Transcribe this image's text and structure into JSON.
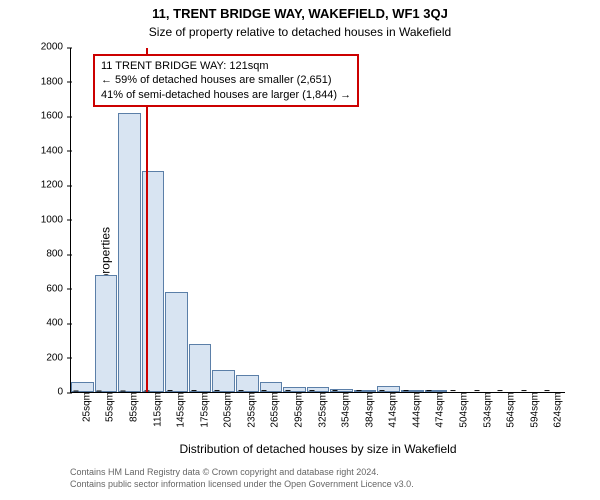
{
  "title": "11, TRENT BRIDGE WAY, WAKEFIELD, WF1 3QJ",
  "subtitle": "Size of property relative to detached houses in Wakefield",
  "ylabel": "Number of detached properties",
  "xlabel": "Distribution of detached houses by size in Wakefield",
  "footer1": "Contains HM Land Registry data © Crown copyright and database right 2024.",
  "footer2": "Contains public sector information licensed under the Open Government Licence v3.0.",
  "chart": {
    "type": "histogram",
    "ylim": [
      0,
      2000
    ],
    "ytick_step": 200,
    "x_categories": [
      "25sqm",
      "55sqm",
      "85sqm",
      "115sqm",
      "145sqm",
      "175sqm",
      "205sqm",
      "235sqm",
      "265sqm",
      "295sqm",
      "325sqm",
      "354sqm",
      "384sqm",
      "414sqm",
      "444sqm",
      "474sqm",
      "504sqm",
      "534sqm",
      "564sqm",
      "594sqm",
      "624sqm"
    ],
    "values": [
      60,
      680,
      1620,
      1280,
      580,
      280,
      130,
      100,
      60,
      30,
      30,
      15,
      10,
      35,
      5,
      5,
      0,
      0,
      0,
      0,
      0
    ],
    "bar_fill": "#d8e4f2",
    "bar_stroke": "#5b7fa8",
    "background": "#ffffff",
    "ref_line": {
      "x_index": 3.2,
      "color": "#cc0000",
      "width": 2
    },
    "annotation": {
      "border_color": "#cc0000",
      "lines": [
        "11 TRENT BRIDGE WAY: 121sqm",
        "← 59% of detached houses are smaller (2,651)",
        "41% of semi-detached houses are larger (1,844) →"
      ]
    }
  }
}
